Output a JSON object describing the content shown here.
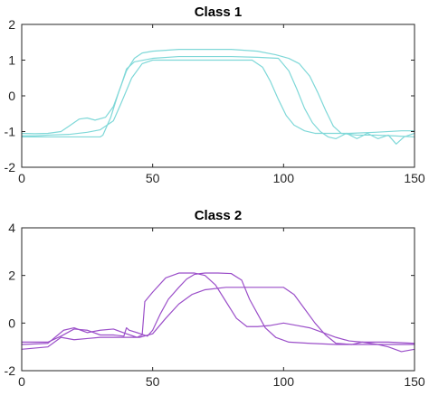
{
  "chart_data": [
    {
      "type": "line",
      "title": "Class 1",
      "xlabel": "",
      "ylabel": "",
      "xlim": [
        0,
        150
      ],
      "ylim": [
        -2,
        2
      ],
      "xticks": [
        0,
        50,
        100,
        150
      ],
      "yticks": [
        -2,
        -1,
        0,
        1,
        2
      ],
      "grid": false,
      "color": "#7FD8D8",
      "series": [
        {
          "points": [
            [
              0,
              -1.12
            ],
            [
              5,
              -1.12
            ],
            [
              10,
              -1.1
            ],
            [
              18,
              -1.08
            ],
            [
              25,
              -1.02
            ],
            [
              30,
              -0.95
            ],
            [
              35,
              -0.7
            ],
            [
              38,
              -0.2
            ],
            [
              42,
              0.5
            ],
            [
              46,
              0.9
            ],
            [
              50,
              1.0
            ],
            [
              60,
              1.0
            ],
            [
              70,
              1.0
            ],
            [
              80,
              1.0
            ],
            [
              88,
              1.0
            ],
            [
              92,
              0.8
            ],
            [
              95,
              0.4
            ],
            [
              98,
              -0.1
            ],
            [
              101,
              -0.55
            ],
            [
              104,
              -0.82
            ],
            [
              108,
              -0.98
            ],
            [
              112,
              -1.05
            ],
            [
              118,
              -1.05
            ],
            [
              125,
              -1.05
            ],
            [
              135,
              -1.02
            ],
            [
              145,
              -0.98
            ],
            [
              150,
              -0.98
            ]
          ]
        },
        {
          "points": [
            [
              0,
              -1.05
            ],
            [
              5,
              -1.06
            ],
            [
              10,
              -1.05
            ],
            [
              15,
              -1.0
            ],
            [
              18,
              -0.85
            ],
            [
              22,
              -0.65
            ],
            [
              25,
              -0.62
            ],
            [
              28,
              -0.68
            ],
            [
              32,
              -0.6
            ],
            [
              35,
              -0.3
            ],
            [
              38,
              0.3
            ],
            [
              40,
              0.75
            ],
            [
              43,
              0.95
            ],
            [
              50,
              1.05
            ],
            [
              60,
              1.1
            ],
            [
              70,
              1.1
            ],
            [
              80,
              1.1
            ],
            [
              90,
              1.08
            ],
            [
              98,
              1.05
            ],
            [
              102,
              0.7
            ],
            [
              105,
              0.2
            ],
            [
              108,
              -0.35
            ],
            [
              111,
              -0.75
            ],
            [
              114,
              -1.0
            ],
            [
              117,
              -1.15
            ],
            [
              120,
              -1.2
            ],
            [
              124,
              -1.05
            ],
            [
              128,
              -1.2
            ],
            [
              132,
              -1.05
            ],
            [
              136,
              -1.2
            ],
            [
              140,
              -1.1
            ],
            [
              143,
              -1.35
            ],
            [
              146,
              -1.15
            ],
            [
              150,
              -1.05
            ]
          ]
        },
        {
          "points": [
            [
              0,
              -1.15
            ],
            [
              10,
              -1.15
            ],
            [
              20,
              -1.15
            ],
            [
              30,
              -1.15
            ],
            [
              31,
              -1.1
            ],
            [
              34,
              -0.6
            ],
            [
              37,
              0.1
            ],
            [
              40,
              0.7
            ],
            [
              43,
              1.05
            ],
            [
              46,
              1.2
            ],
            [
              50,
              1.25
            ],
            [
              60,
              1.3
            ],
            [
              70,
              1.3
            ],
            [
              80,
              1.3
            ],
            [
              90,
              1.25
            ],
            [
              97,
              1.15
            ],
            [
              102,
              1.05
            ],
            [
              106,
              0.9
            ],
            [
              110,
              0.55
            ],
            [
              113,
              0.1
            ],
            [
              116,
              -0.4
            ],
            [
              119,
              -0.85
            ],
            [
              122,
              -1.05
            ],
            [
              128,
              -1.1
            ],
            [
              135,
              -1.1
            ],
            [
              142,
              -1.12
            ],
            [
              150,
              -1.15
            ]
          ]
        }
      ]
    },
    {
      "type": "line",
      "title": "Class 2",
      "xlabel": "",
      "ylabel": "",
      "xlim": [
        0,
        150
      ],
      "ylim": [
        -2,
        4
      ],
      "xticks": [
        0,
        50,
        100,
        150
      ],
      "yticks": [
        -2,
        0,
        2,
        4
      ],
      "grid": false,
      "color": "#9B4FC9",
      "series": [
        {
          "points": [
            [
              0,
              -0.8
            ],
            [
              10,
              -0.8
            ],
            [
              15,
              -0.55
            ],
            [
              20,
              -0.25
            ],
            [
              25,
              -0.3
            ],
            [
              30,
              -0.5
            ],
            [
              35,
              -0.5
            ],
            [
              39,
              -0.55
            ],
            [
              40,
              -0.2
            ],
            [
              41,
              -0.3
            ],
            [
              44,
              -0.4
            ],
            [
              48,
              -0.55
            ],
            [
              50,
              -0.3
            ],
            [
              53,
              0.4
            ],
            [
              56,
              1.0
            ],
            [
              60,
              1.5
            ],
            [
              63,
              1.85
            ],
            [
              66,
              2.05
            ],
            [
              70,
              2.1
            ],
            [
              75,
              2.1
            ],
            [
              80,
              2.08
            ],
            [
              84,
              1.8
            ],
            [
              87,
              1.0
            ],
            [
              90,
              0.4
            ],
            [
              93,
              -0.2
            ],
            [
              97,
              -0.6
            ],
            [
              102,
              -0.8
            ],
            [
              110,
              -0.85
            ],
            [
              120,
              -0.9
            ],
            [
              130,
              -0.9
            ],
            [
              140,
              -0.9
            ],
            [
              150,
              -0.9
            ]
          ]
        },
        {
          "points": [
            [
              0,
              -0.9
            ],
            [
              10,
              -0.85
            ],
            [
              16,
              -0.3
            ],
            [
              20,
              -0.2
            ],
            [
              25,
              -0.4
            ],
            [
              30,
              -0.3
            ],
            [
              35,
              -0.25
            ],
            [
              40,
              -0.45
            ],
            [
              44,
              -0.6
            ],
            [
              46,
              -0.5
            ],
            [
              47,
              0.9
            ],
            [
              50,
              1.3
            ],
            [
              55,
              1.9
            ],
            [
              60,
              2.1
            ],
            [
              66,
              2.1
            ],
            [
              70,
              2.0
            ],
            [
              74,
              1.6
            ],
            [
              78,
              0.9
            ],
            [
              82,
              0.2
            ],
            [
              86,
              -0.15
            ],
            [
              90,
              -0.15
            ],
            [
              95,
              -0.1
            ],
            [
              100,
              0.0
            ],
            [
              105,
              -0.1
            ],
            [
              110,
              -0.2
            ],
            [
              115,
              -0.4
            ],
            [
              120,
              -0.6
            ],
            [
              125,
              -0.75
            ],
            [
              130,
              -0.8
            ],
            [
              140,
              -0.8
            ],
            [
              150,
              -0.85
            ]
          ]
        },
        {
          "points": [
            [
              0,
              -1.1
            ],
            [
              10,
              -1.0
            ],
            [
              15,
              -0.6
            ],
            [
              20,
              -0.7
            ],
            [
              25,
              -0.65
            ],
            [
              30,
              -0.6
            ],
            [
              35,
              -0.6
            ],
            [
              40,
              -0.6
            ],
            [
              45,
              -0.6
            ],
            [
              50,
              -0.45
            ],
            [
              55,
              0.2
            ],
            [
              60,
              0.8
            ],
            [
              65,
              1.2
            ],
            [
              70,
              1.4
            ],
            [
              78,
              1.5
            ],
            [
              85,
              1.5
            ],
            [
              95,
              1.5
            ],
            [
              100,
              1.5
            ],
            [
              104,
              1.2
            ],
            [
              108,
              0.6
            ],
            [
              112,
              0.0
            ],
            [
              116,
              -0.5
            ],
            [
              120,
              -0.85
            ],
            [
              126,
              -0.9
            ],
            [
              130,
              -0.8
            ],
            [
              136,
              -0.9
            ],
            [
              140,
              -1.0
            ],
            [
              145,
              -1.2
            ],
            [
              150,
              -1.1
            ]
          ]
        }
      ]
    }
  ]
}
